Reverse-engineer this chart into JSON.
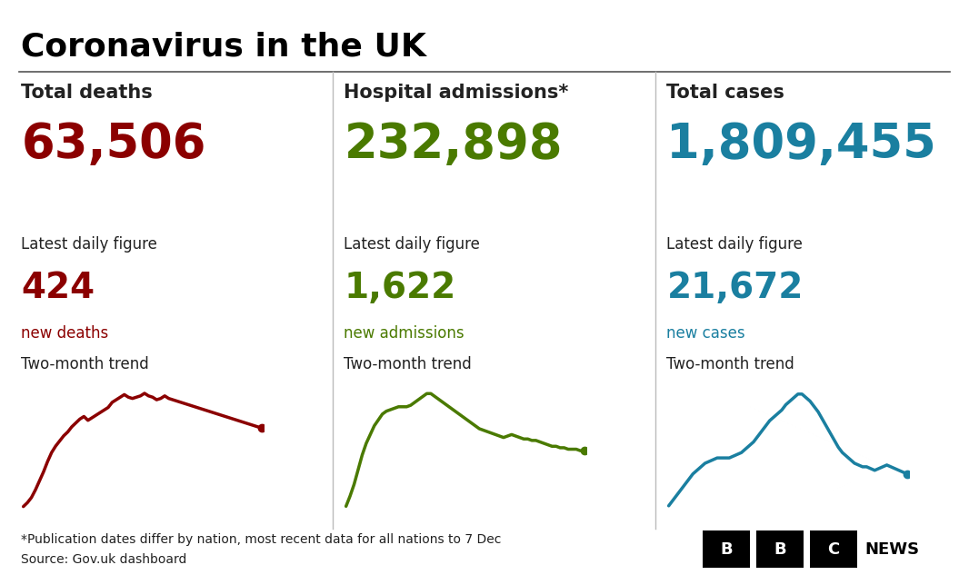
{
  "title": "Coronavirus in the UK",
  "background_color": "#ffffff",
  "title_color": "#000000",
  "title_fontsize": 26,
  "columns": [
    {
      "header": "Total deaths",
      "total_value": "63,506",
      "daily_label": "Latest daily figure",
      "daily_value": "424",
      "daily_sublabel": "new deaths",
      "trend_label": "Two-month trend",
      "color": "#8b0000",
      "trend_y": [
        0.05,
        0.08,
        0.12,
        0.18,
        0.25,
        0.32,
        0.4,
        0.47,
        0.52,
        0.56,
        0.6,
        0.63,
        0.67,
        0.7,
        0.73,
        0.75,
        0.72,
        0.74,
        0.76,
        0.78,
        0.8,
        0.82,
        0.86,
        0.88,
        0.9,
        0.92,
        0.9,
        0.89,
        0.9,
        0.91,
        0.93,
        0.91,
        0.9,
        0.88,
        0.89,
        0.91,
        0.89,
        0.88,
        0.87,
        0.86,
        0.85,
        0.84,
        0.83,
        0.82,
        0.81,
        0.8,
        0.79,
        0.78,
        0.77,
        0.76,
        0.75,
        0.74,
        0.73,
        0.72,
        0.71,
        0.7,
        0.69,
        0.68,
        0.67,
        0.66
      ]
    },
    {
      "header": "Hospital admissions*",
      "total_value": "232,898",
      "daily_label": "Latest daily figure",
      "daily_value": "1,622",
      "daily_sublabel": "new admissions",
      "trend_label": "Two-month trend",
      "color": "#4a7a00",
      "trend_y": [
        0.15,
        0.22,
        0.3,
        0.4,
        0.5,
        0.58,
        0.64,
        0.7,
        0.74,
        0.78,
        0.8,
        0.81,
        0.82,
        0.83,
        0.83,
        0.83,
        0.84,
        0.86,
        0.88,
        0.9,
        0.92,
        0.92,
        0.9,
        0.88,
        0.86,
        0.84,
        0.82,
        0.8,
        0.78,
        0.76,
        0.74,
        0.72,
        0.7,
        0.68,
        0.67,
        0.66,
        0.65,
        0.64,
        0.63,
        0.62,
        0.63,
        0.64,
        0.63,
        0.62,
        0.61,
        0.61,
        0.6,
        0.6,
        0.59,
        0.58,
        0.57,
        0.56,
        0.56,
        0.55,
        0.55,
        0.54,
        0.54,
        0.54,
        0.53,
        0.53
      ]
    },
    {
      "header": "Total cases",
      "total_value": "1,809,455",
      "daily_label": "Latest daily figure",
      "daily_value": "21,672",
      "daily_sublabel": "new cases",
      "trend_label": "Two-month trend",
      "color": "#1a7fa0",
      "trend_y": [
        0.3,
        0.33,
        0.36,
        0.39,
        0.42,
        0.45,
        0.48,
        0.5,
        0.52,
        0.54,
        0.55,
        0.56,
        0.57,
        0.57,
        0.57,
        0.57,
        0.58,
        0.59,
        0.6,
        0.62,
        0.64,
        0.66,
        0.69,
        0.72,
        0.75,
        0.78,
        0.8,
        0.82,
        0.84,
        0.87,
        0.89,
        0.91,
        0.93,
        0.93,
        0.91,
        0.89,
        0.86,
        0.83,
        0.79,
        0.75,
        0.71,
        0.67,
        0.63,
        0.6,
        0.58,
        0.56,
        0.54,
        0.53,
        0.52,
        0.52,
        0.51,
        0.5,
        0.51,
        0.52,
        0.53,
        0.52,
        0.51,
        0.5,
        0.49,
        0.48
      ]
    }
  ],
  "footnote": "*Publication dates differ by nation, most recent data for all nations to 7 Dec",
  "source": "Source: Gov.uk dashboard",
  "divider_color": "#bbbbbb",
  "text_color": "#222222",
  "header_fontsize": 15,
  "total_fontsize": 38,
  "label_fontsize": 12,
  "daily_fontsize": 28,
  "sublabel_fontsize": 12,
  "trend_label_fontsize": 12,
  "footnote_fontsize": 10
}
